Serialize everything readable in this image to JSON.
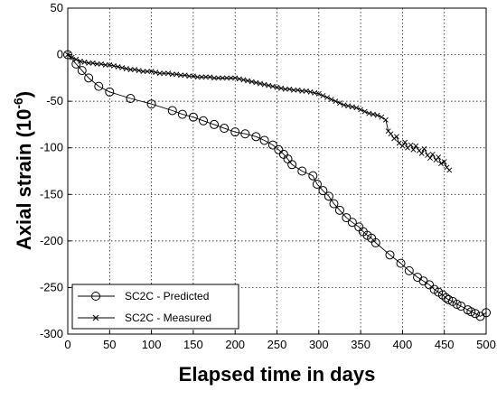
{
  "chart_data": {
    "type": "line",
    "title": "",
    "xlabel": "Elapsed time in days",
    "ylabel_main": "Axial strain (10",
    "ylabel_sup": "-6",
    "ylabel_close": ")",
    "xlim": [
      0,
      500
    ],
    "ylim": [
      -300,
      50
    ],
    "xticks": [
      0,
      50,
      100,
      150,
      200,
      250,
      300,
      350,
      400,
      450,
      500
    ],
    "yticks": [
      50,
      0,
      -50,
      -100,
      -150,
      -200,
      -250,
      -300
    ],
    "grid": true,
    "grid_style": "dotted",
    "legend_position": "bottom-left",
    "series": [
      {
        "name": "SC2C - Predicted",
        "marker": "circle",
        "color": "#000000",
        "x": [
          0,
          10,
          17,
          25,
          37,
          50,
          75,
          100,
          125,
          137,
          150,
          162,
          175,
          187,
          200,
          212,
          225,
          235,
          245,
          252,
          258,
          263,
          268,
          280,
          293,
          298,
          305,
          312,
          318,
          325,
          333,
          340,
          348,
          353,
          358,
          363,
          368,
          385,
          398,
          408,
          418,
          425,
          432,
          438,
          443,
          448,
          452,
          455,
          460,
          465,
          470,
          478,
          482,
          487,
          493,
          500
        ],
        "y": [
          0,
          -10,
          -17,
          -25,
          -34,
          -40,
          -47,
          -53,
          -60,
          -64,
          -67,
          -71,
          -75,
          -79,
          -83,
          -85,
          -88,
          -92,
          -97,
          -102,
          -107,
          -112,
          -118,
          -125,
          -130,
          -139,
          -146,
          -152,
          -160,
          -167,
          -175,
          -180,
          -185,
          -190,
          -194,
          -197,
          -202,
          -215,
          -224,
          -232,
          -239,
          -243,
          -247,
          -252,
          -255,
          -258,
          -261,
          -263,
          -265,
          -268,
          -270,
          -274,
          -276,
          -278,
          -281,
          -277
        ]
      },
      {
        "name": "SC2C - Measured",
        "marker": "x",
        "color": "#000000",
        "x": [
          0,
          5,
          10,
          15,
          20,
          25,
          30,
          35,
          40,
          45,
          50,
          55,
          60,
          65,
          70,
          75,
          80,
          85,
          90,
          95,
          100,
          105,
          110,
          115,
          120,
          125,
          130,
          135,
          140,
          145,
          150,
          155,
          160,
          165,
          170,
          175,
          180,
          185,
          190,
          195,
          200,
          205,
          210,
          215,
          220,
          225,
          230,
          235,
          240,
          245,
          250,
          255,
          260,
          265,
          270,
          275,
          280,
          285,
          290,
          295,
          300,
          305,
          310,
          315,
          320,
          325,
          330,
          335,
          340,
          345,
          350,
          355,
          360,
          365,
          370,
          375,
          380,
          383,
          386,
          390,
          393,
          396,
          400,
          403,
          406,
          410,
          413,
          416,
          420,
          423,
          426,
          430,
          433,
          436,
          440,
          443,
          446,
          450,
          453,
          456
        ],
        "y": [
          0,
          -3,
          -5,
          -7,
          -8,
          -9,
          -9,
          -10,
          -10,
          -11,
          -11,
          -12,
          -13,
          -14,
          -15,
          -16,
          -16,
          -17,
          -18,
          -18,
          -18,
          -19,
          -20,
          -20,
          -20,
          -21,
          -21,
          -22,
          -22,
          -23,
          -23,
          -24,
          -24,
          -24,
          -24,
          -25,
          -25,
          -25,
          -25,
          -25,
          -25,
          -26,
          -27,
          -28,
          -29,
          -30,
          -31,
          -32,
          -33,
          -34,
          -35,
          -36,
          -37,
          -37,
          -38,
          -38,
          -39,
          -39,
          -40,
          -41,
          -42,
          -44,
          -46,
          -48,
          -50,
          -52,
          -54,
          -55,
          -56,
          -57,
          -59,
          -61,
          -63,
          -64,
          -65,
          -67,
          -70,
          -82,
          -85,
          -90,
          -88,
          -95,
          -98,
          -94,
          -100,
          -97,
          -102,
          -98,
          -103,
          -106,
          -101,
          -108,
          -111,
          -107,
          -113,
          -110,
          -117,
          -115,
          -121,
          -124
        ]
      }
    ]
  }
}
